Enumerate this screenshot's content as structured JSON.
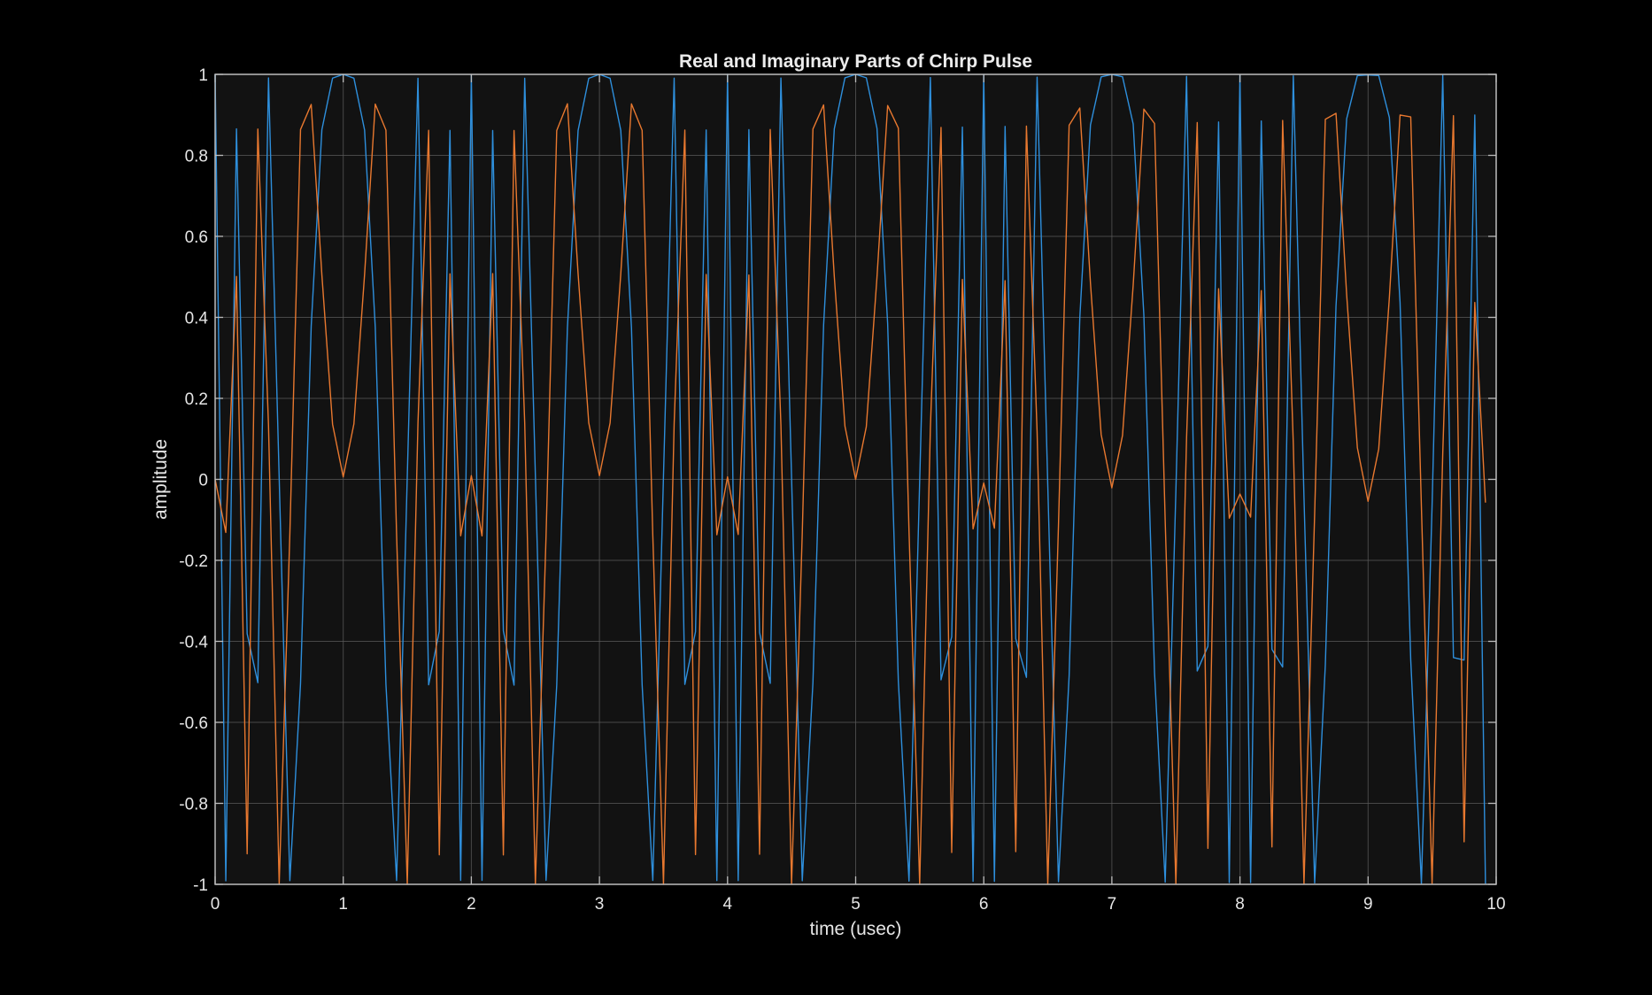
{
  "chart_data": {
    "type": "line",
    "title": "Real and Imaginary Parts of Chirp Pulse",
    "xlabel": "time (usec)",
    "ylabel": "amplitude",
    "xlim": [
      0,
      10
    ],
    "ylim": [
      -1,
      1
    ],
    "xticks": [
      0,
      1,
      2,
      3,
      4,
      5,
      6,
      7,
      8,
      9,
      10
    ],
    "xtick_labels": [
      "0",
      "1",
      "2",
      "3",
      "4",
      "5",
      "6",
      "7",
      "8",
      "9",
      "10"
    ],
    "yticks": [
      -1,
      -0.8,
      -0.6,
      -0.4,
      -0.2,
      0,
      0.2,
      0.4,
      0.6,
      0.8,
      1
    ],
    "ytick_labels": [
      "-1",
      "-0.8",
      "-0.6",
      "-0.4",
      "-0.2",
      "0",
      "0.2",
      "0.4",
      "0.6",
      "0.8",
      "1"
    ],
    "grid": true,
    "sampling": {
      "start": 0,
      "step": 0.08333,
      "count": 120
    },
    "series": [
      {
        "color": "#2e8fdc",
        "real_part": true
      },
      {
        "color": "#e8782f",
        "imag_part": true
      }
    ],
    "colors": {
      "background": "#000000",
      "axes_background": "#121212",
      "axes_edge": "#bdbdbd",
      "grid": "#5a5a5a",
      "text": "#e6e6e6"
    }
  }
}
